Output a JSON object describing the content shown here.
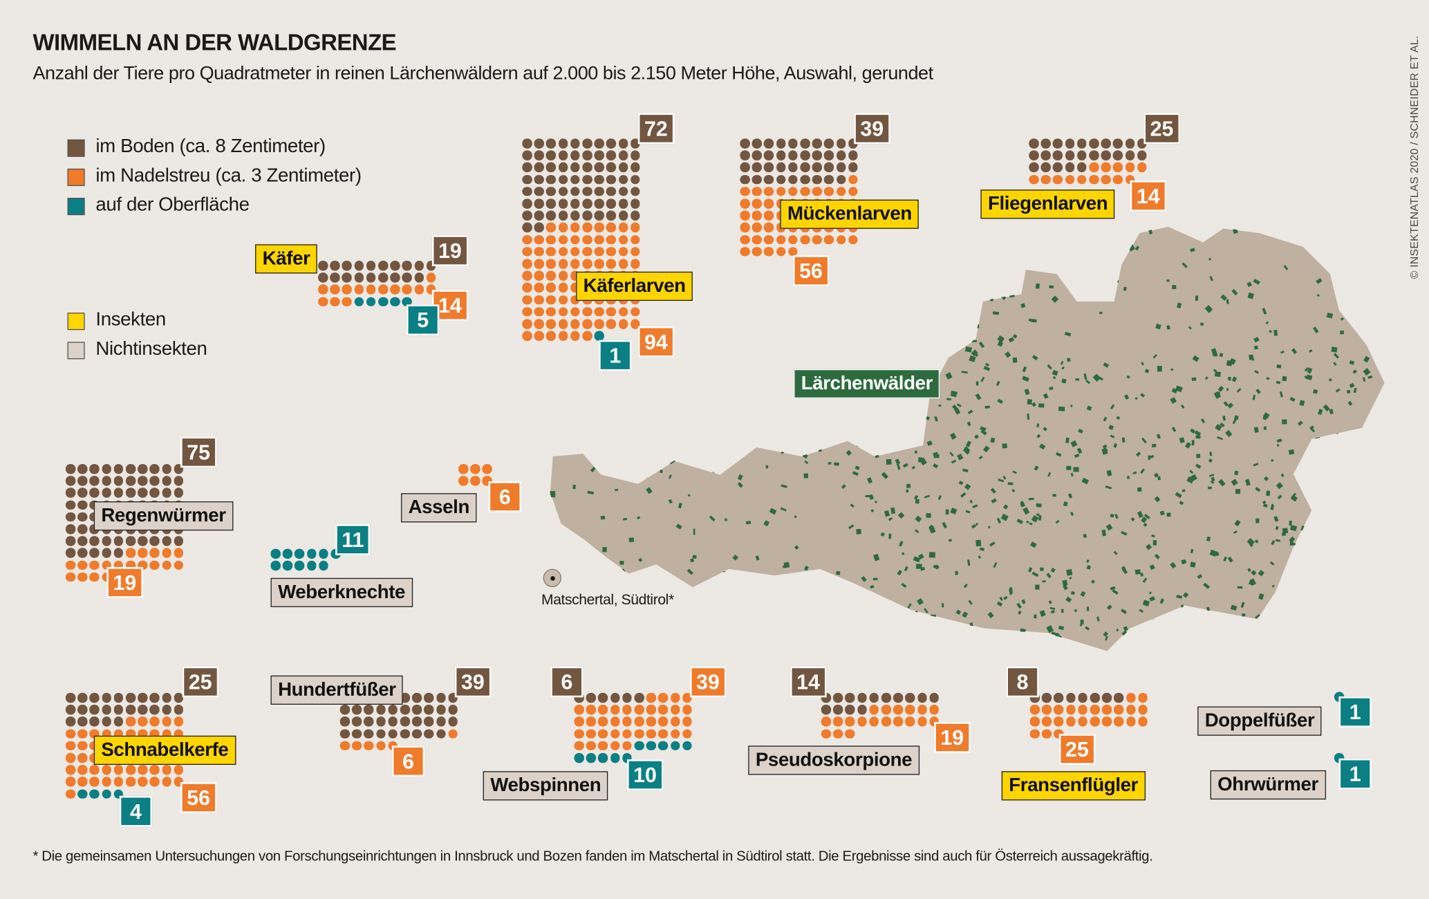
{
  "header": {
    "title": "WIMMELN AN DER WALDGRENZE",
    "subtitle": "Anzahl der Tiere pro Quadratmeter in reinen Lärchenwäldern auf 2.000 bis 2.150 Meter Höhe, Auswahl, gerundet"
  },
  "copyright": "© INSEKTENATLAS 2020 / SCHNEIDER ET AL.",
  "footnote": "* Die gemeinsamen Untersuchungen von Forschungseinrichtungen in Innsbruck und Bozen fanden im Matschertal in Südtirol statt. Die Ergebnisse sind auch für Österreich aussagekräftig.",
  "legend": {
    "layers": [
      {
        "label": "im Boden (ca. 8 Zentimeter)",
        "color": "#735640"
      },
      {
        "label": "im Nadelstreu (ca. 3 Zentimeter)",
        "color": "#ef7b2b"
      },
      {
        "label": "auf der Oberfläche",
        "color": "#0a7f84"
      }
    ],
    "types": [
      {
        "label": "Insekten",
        "color": "#ffd500"
      },
      {
        "label": "Nichtinsekten",
        "color": "#dcd2c9"
      }
    ]
  },
  "map": {
    "label": "Lärchenwälder",
    "land_color": "#bfb0a0",
    "forest_color": "#2d6b3f",
    "marker_label": "Matschertal, Südtirol*"
  },
  "chart_data": {
    "type": "unit-dot",
    "unit": "Tiere pro Quadratmeter",
    "series_names": [
      "im Boden",
      "im Nadelstreu",
      "auf der Oberfläche"
    ],
    "groups": [
      {
        "name": "Käferlarven",
        "type": "insect",
        "boden": 72,
        "nadelstreu": 94,
        "oberflaeche": 1
      },
      {
        "name": "Mückenlarven",
        "type": "insect",
        "boden": 39,
        "nadelstreu": 56,
        "oberflaeche": 0
      },
      {
        "name": "Fliegenlarven",
        "type": "insect",
        "boden": 25,
        "nadelstreu": 14,
        "oberflaeche": 0
      },
      {
        "name": "Käfer",
        "type": "insect",
        "boden": 19,
        "nadelstreu": 14,
        "oberflaeche": 5
      },
      {
        "name": "Regenwürmer",
        "type": "non",
        "boden": 75,
        "nadelstreu": 19,
        "oberflaeche": 0
      },
      {
        "name": "Asseln",
        "type": "non",
        "boden": 0,
        "nadelstreu": 6,
        "oberflaeche": 0
      },
      {
        "name": "Weberknechte",
        "type": "non",
        "boden": 0,
        "nadelstreu": 0,
        "oberflaeche": 11
      },
      {
        "name": "Schnabelkerfe",
        "type": "insect",
        "boden": 25,
        "nadelstreu": 56,
        "oberflaeche": 4
      },
      {
        "name": "Hundertfüßer",
        "type": "non",
        "boden": 39,
        "nadelstreu": 6,
        "oberflaeche": 0
      },
      {
        "name": "Webspinnen",
        "type": "non",
        "boden": 6,
        "nadelstreu": 39,
        "oberflaeche": 10
      },
      {
        "name": "Pseudoskorpione",
        "type": "non",
        "boden": 14,
        "nadelstreu": 19,
        "oberflaeche": 0
      },
      {
        "name": "Fransenflügler",
        "type": "insect",
        "boden": 8,
        "nadelstreu": 25,
        "oberflaeche": 0
      },
      {
        "name": "Doppelfüßer",
        "type": "non",
        "boden": 0,
        "nadelstreu": 0,
        "oberflaeche": 1
      },
      {
        "name": "Ohrwürmer",
        "type": "non",
        "boden": 0,
        "nadelstreu": 0,
        "oberflaeche": 1
      }
    ]
  }
}
